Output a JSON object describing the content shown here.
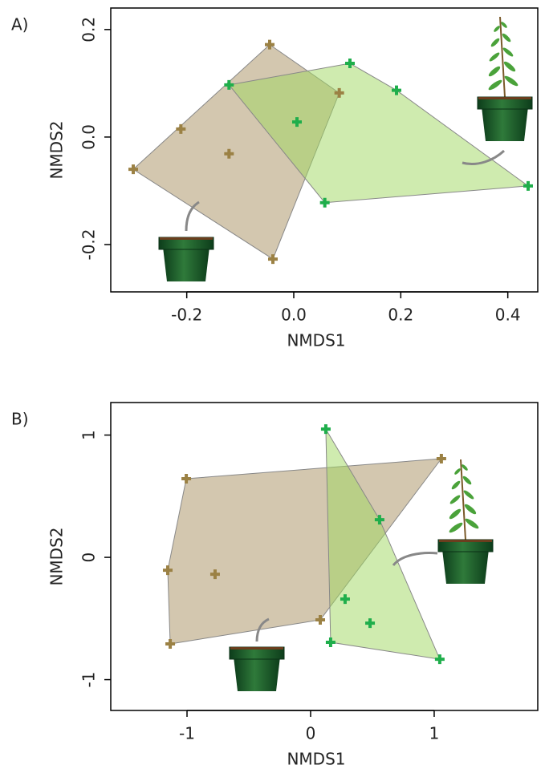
{
  "chart_data": [
    {
      "type": "scatter",
      "label": "A)",
      "xlabel": "NMDS1",
      "ylabel": "NMDS2",
      "xlim": [
        -0.342,
        0.456
      ],
      "ylim": [
        -0.288,
        0.24
      ],
      "xticks": [
        -0.2,
        {
          "value": 0,
          "label": "0.0"
        },
        0.2,
        0.4
      ],
      "yticks": [
        -0.2,
        {
          "value": 0,
          "label": "0.0"
        },
        0.2
      ],
      "hull": true,
      "series": [
        {
          "color": "#9b8144",
          "hull_color": "#a89060",
          "x": [
            -0.3,
            -0.211,
            -0.121,
            -0.045,
            0.085,
            -0.039
          ],
          "values": [
            -0.06,
            0.015,
            -0.031,
            0.172,
            0.082,
            -0.227
          ]
        },
        {
          "color": "#1fae4b",
          "hull_color": "#9fd760",
          "x": [
            -0.121,
            0.006,
            0.105,
            0.192,
            0.438,
            0.058
          ],
          "values": [
            0.097,
            0.028,
            0.137,
            0.087,
            -0.091,
            -0.122
          ]
        }
      ]
    },
    {
      "type": "scatter",
      "label": "B)",
      "xlabel": "NMDS1",
      "ylabel": "NMDS2",
      "xlim": [
        -1.617,
        1.838
      ],
      "ylim": [
        -1.252,
        1.266
      ],
      "xticks": [
        -1,
        0,
        1
      ],
      "yticks": [
        -1,
        0,
        1
      ],
      "hull": true,
      "series": [
        {
          "color": "#9b8144",
          "hull_color": "#a89060",
          "x": [
            -1.006,
            -1.156,
            -0.773,
            -1.136,
            0.078,
            1.058
          ],
          "values": [
            0.643,
            -0.105,
            -0.138,
            -0.708,
            -0.511,
            0.807
          ]
        },
        {
          "color": "#1fae4b",
          "hull_color": "#9fd760",
          "x": [
            0.123,
            0.558,
            0.279,
            0.481,
            0.162,
            1.045
          ],
          "values": [
            1.049,
            0.308,
            -0.341,
            -0.538,
            -0.695,
            -0.833
          ]
        }
      ]
    }
  ]
}
